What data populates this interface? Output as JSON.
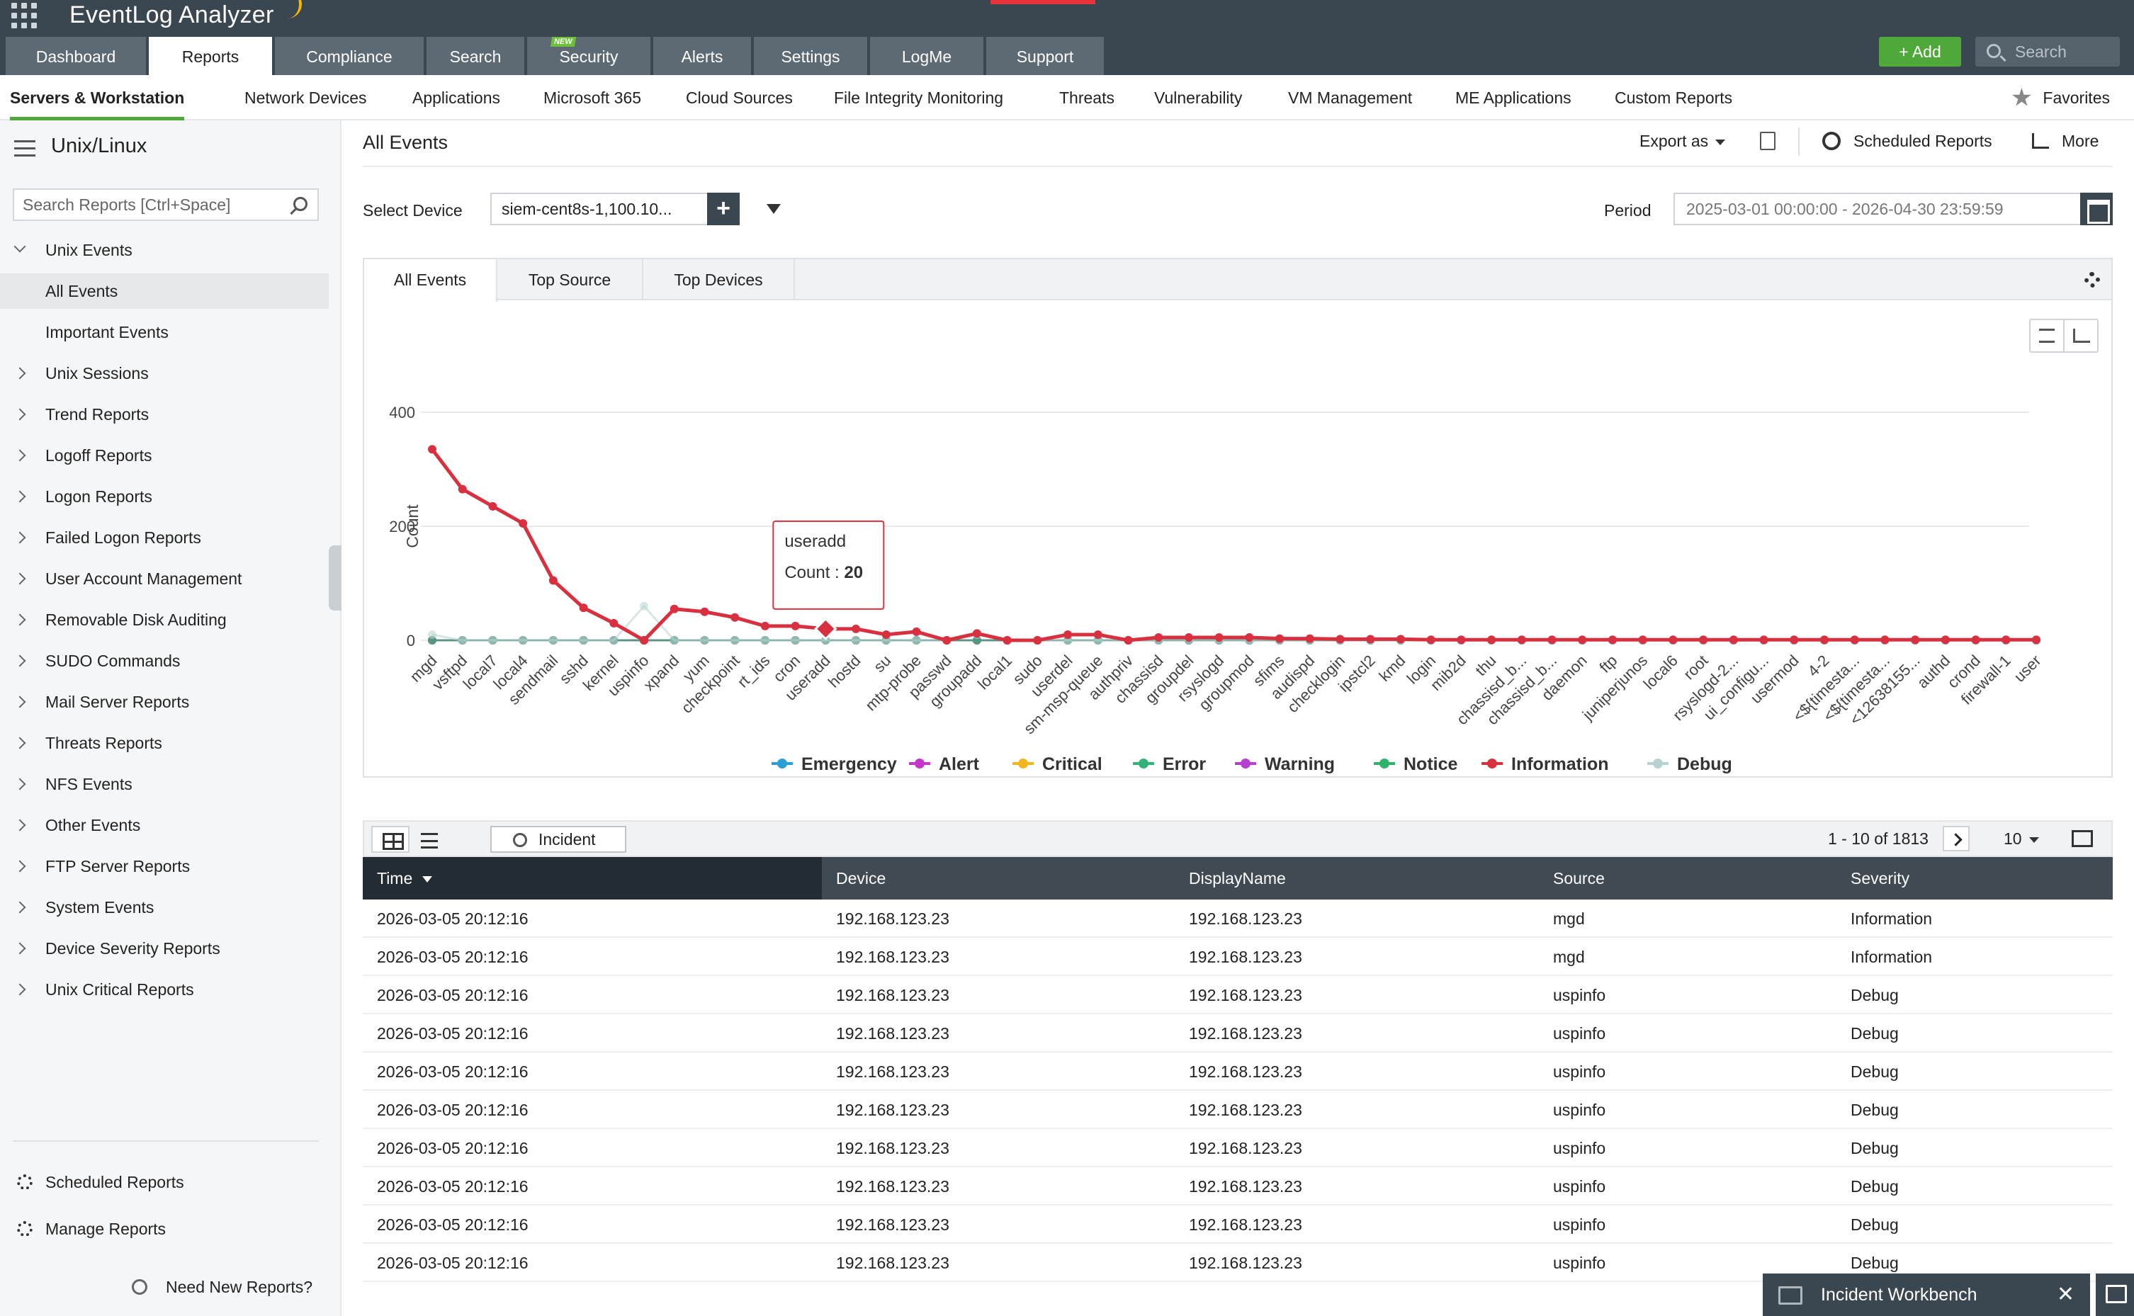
{
  "app": {
    "title": "EventLog Analyzer"
  },
  "main_tabs": [
    {
      "label": "Dashboard",
      "active": false
    },
    {
      "label": "Reports",
      "active": true
    },
    {
      "label": "Compliance",
      "active": false
    },
    {
      "label": "Search",
      "active": false
    },
    {
      "label": "Security",
      "active": false,
      "badge": "NEW"
    },
    {
      "label": "Alerts",
      "active": false
    },
    {
      "label": "Settings",
      "active": false
    },
    {
      "label": "LogMe",
      "active": false
    },
    {
      "label": "Support",
      "active": false
    }
  ],
  "header_actions": {
    "add_label": "Add",
    "search_placeholder": "Search"
  },
  "sub_nav": {
    "items": [
      "Servers & Workstation",
      "Network Devices",
      "Applications",
      "Microsoft 365",
      "Cloud Sources",
      "File Integrity Monitoring",
      "Threats",
      "Vulnerability",
      "VM Management",
      "ME Applications",
      "Custom Reports"
    ],
    "favorites": "Favorites"
  },
  "sidebar": {
    "title": "Unix/Linux",
    "search_placeholder": "Search Reports [Ctrl+Space]",
    "items": [
      {
        "label": "Unix Events",
        "type": "group-open"
      },
      {
        "label": "All Events",
        "type": "child",
        "active": true
      },
      {
        "label": "Important Events",
        "type": "child"
      },
      {
        "label": "Unix Sessions",
        "type": "group"
      },
      {
        "label": "Trend Reports",
        "type": "group"
      },
      {
        "label": "Logoff Reports",
        "type": "group"
      },
      {
        "label": "Logon Reports",
        "type": "group"
      },
      {
        "label": "Failed Logon Reports",
        "type": "group"
      },
      {
        "label": "User Account Management",
        "type": "group"
      },
      {
        "label": "Removable Disk Auditing",
        "type": "group"
      },
      {
        "label": "SUDO Commands",
        "type": "group"
      },
      {
        "label": "Mail Server Reports",
        "type": "group"
      },
      {
        "label": "Threats Reports",
        "type": "group"
      },
      {
        "label": "NFS Events",
        "type": "group"
      },
      {
        "label": "Other Events",
        "type": "group"
      },
      {
        "label": "FTP Server Reports",
        "type": "group"
      },
      {
        "label": "System Events",
        "type": "group"
      },
      {
        "label": "Device Severity Reports",
        "type": "group"
      },
      {
        "label": "Unix Critical Reports",
        "type": "group"
      }
    ],
    "footer": {
      "scheduled": "Scheduled Reports",
      "manage": "Manage Reports",
      "need_new": "Need New Reports?"
    }
  },
  "page": {
    "title": "All Events",
    "export_label": "Export as",
    "scheduled_label": "Scheduled Reports",
    "more_label": "More",
    "select_device_label": "Select Device",
    "device_value": "siem-cent8s-1,100.10...",
    "period_label": "Period",
    "period_value": "2025-03-01 00:00:00 - 2026-04-30 23:59:59"
  },
  "chart_tabs": [
    {
      "label": "All Events",
      "active": true
    },
    {
      "label": "Top Source",
      "active": false
    },
    {
      "label": "Top Devices",
      "active": false
    }
  ],
  "chart_data": {
    "type": "line",
    "ylabel": "Count",
    "ylim": [
      0,
      400
    ],
    "yticks": [
      0,
      200,
      400
    ],
    "categories": [
      "mgd",
      "vsftpd",
      "local7",
      "local4",
      "sendmail",
      "sshd",
      "kernel",
      "uspinfo",
      "xpand",
      "yum",
      "checkpoint",
      "rt_ids",
      "cron",
      "useradd",
      "hostd",
      "su",
      "mtp-probe",
      "passwd",
      "groupadd",
      "local1",
      "sudo",
      "userdel",
      "sm-msp-queue",
      "authpriv",
      "chassisd",
      "groupdel",
      "rsyslogd",
      "groupmod",
      "sfims",
      "audispd",
      "checklogin",
      "ipstcl2",
      "kmd",
      "login",
      "mib2d",
      "thu",
      "chassisd_b...",
      "chassisd_b...",
      "daemon",
      "ftp",
      "juniperjunos",
      "local6",
      "root",
      "rsyslogd-2...",
      "ui_configu...",
      "usermod",
      "4-2",
      "<${timesta...",
      "<${timesta...",
      "<12638155...",
      "authd",
      "crond",
      "firewall-1",
      "user"
    ],
    "series": [
      {
        "name": "Emergency",
        "color": "#2a9fd6",
        "values": [
          0,
          0,
          0,
          0,
          0,
          0,
          0,
          0,
          0,
          0,
          0,
          0,
          0,
          0,
          0,
          0,
          0,
          0,
          0,
          0,
          0,
          0,
          0,
          0,
          0,
          0,
          0,
          0,
          0,
          0,
          0,
          0,
          0,
          0,
          0,
          0,
          0,
          0,
          0,
          0,
          0,
          0,
          0,
          0,
          0,
          0,
          0,
          0,
          0,
          0,
          0,
          0,
          0,
          0
        ]
      },
      {
        "name": "Alert",
        "color": "#c337c9",
        "values": [
          0,
          0,
          0,
          0,
          0,
          0,
          0,
          0,
          0,
          0,
          0,
          0,
          0,
          0,
          0,
          0,
          0,
          0,
          0,
          0,
          0,
          0,
          0,
          0,
          0,
          0,
          0,
          0,
          0,
          0,
          0,
          0,
          0,
          0,
          0,
          0,
          0,
          0,
          0,
          0,
          0,
          0,
          0,
          0,
          0,
          0,
          0,
          0,
          0,
          0,
          0,
          0,
          0,
          0
        ]
      },
      {
        "name": "Critical",
        "color": "#f2b51c",
        "values": [
          0,
          0,
          0,
          0,
          0,
          0,
          0,
          0,
          0,
          0,
          0,
          0,
          0,
          0,
          0,
          0,
          0,
          0,
          0,
          0,
          0,
          0,
          0,
          0,
          0,
          0,
          0,
          0,
          0,
          0,
          0,
          0,
          0,
          0,
          0,
          0,
          0,
          0,
          0,
          0,
          0,
          0,
          0,
          0,
          0,
          0,
          0,
          0,
          0,
          0,
          0,
          0,
          0,
          0
        ]
      },
      {
        "name": "Error",
        "color": "#33b37a",
        "values": [
          0,
          0,
          0,
          0,
          0,
          0,
          0,
          0,
          0,
          0,
          0,
          0,
          0,
          0,
          0,
          0,
          0,
          0,
          0,
          0,
          0,
          0,
          0,
          0,
          0,
          0,
          0,
          0,
          0,
          0,
          0,
          0,
          0,
          0,
          0,
          0,
          0,
          0,
          0,
          0,
          0,
          0,
          0,
          0,
          0,
          0,
          0,
          0,
          0,
          0,
          0,
          0,
          0,
          0
        ]
      },
      {
        "name": "Warning",
        "color": "#b53fd1",
        "values": [
          0,
          0,
          0,
          0,
          0,
          0,
          0,
          0,
          0,
          0,
          0,
          0,
          0,
          0,
          0,
          0,
          0,
          0,
          0,
          0,
          0,
          0,
          0,
          0,
          0,
          0,
          0,
          0,
          0,
          0,
          0,
          0,
          0,
          0,
          0,
          0,
          0,
          0,
          0,
          0,
          0,
          0,
          0,
          0,
          0,
          0,
          0,
          0,
          0,
          0,
          0,
          0,
          0,
          0
        ]
      },
      {
        "name": "Notice",
        "color": "#2fb36b",
        "values": [
          0,
          0,
          0,
          0,
          0,
          0,
          0,
          0,
          0,
          0,
          0,
          0,
          0,
          0,
          0,
          0,
          0,
          0,
          0,
          0,
          0,
          0,
          0,
          0,
          0,
          0,
          0,
          0,
          0,
          0,
          0,
          0,
          0,
          0,
          0,
          0,
          0,
          0,
          0,
          0,
          0,
          0,
          0,
          0,
          0,
          0,
          0,
          0,
          0,
          0,
          0,
          0,
          0,
          0
        ]
      },
      {
        "name": "Information",
        "color": "#d9303f",
        "values": [
          335,
          265,
          235,
          205,
          105,
          57,
          30,
          0,
          55,
          50,
          40,
          25,
          25,
          20,
          20,
          10,
          15,
          0,
          12,
          0,
          0,
          10,
          10,
          0,
          5,
          5,
          5,
          5,
          3,
          3,
          2,
          2,
          2,
          1,
          1,
          1,
          1,
          1,
          1,
          1,
          1,
          1,
          1,
          1,
          1,
          1,
          1,
          1,
          1,
          1,
          1,
          1,
          1,
          1
        ]
      },
      {
        "name": "Debug",
        "color": "#b7d3d0",
        "values": [
          10,
          0,
          0,
          0,
          0,
          0,
          0,
          60,
          0,
          0,
          0,
          0,
          0,
          0,
          0,
          0,
          0,
          0,
          10,
          0,
          0,
          0,
          0,
          0,
          0,
          0,
          0,
          0,
          0,
          0,
          0,
          0,
          0,
          0,
          0,
          0,
          0,
          0,
          0,
          0,
          0,
          0,
          0,
          0,
          0,
          0,
          0,
          0,
          0,
          0,
          0,
          0,
          0,
          0
        ]
      }
    ],
    "tooltip": {
      "category": "useradd",
      "label": "Count",
      "value": "20"
    },
    "legend_position": "bottom-center",
    "grid": true
  },
  "table": {
    "incident_label": "Incident",
    "pagination": "1 - 10 of 1813",
    "per_page": "10",
    "columns": [
      "Time",
      "Device",
      "DisplayName",
      "Source",
      "Severity"
    ],
    "rows": [
      [
        "2026-03-05 20:12:16",
        "192.168.123.23",
        "192.168.123.23",
        "mgd",
        "Information"
      ],
      [
        "2026-03-05 20:12:16",
        "192.168.123.23",
        "192.168.123.23",
        "mgd",
        "Information"
      ],
      [
        "2026-03-05 20:12:16",
        "192.168.123.23",
        "192.168.123.23",
        "uspinfo",
        "Debug"
      ],
      [
        "2026-03-05 20:12:16",
        "192.168.123.23",
        "192.168.123.23",
        "uspinfo",
        "Debug"
      ],
      [
        "2026-03-05 20:12:16",
        "192.168.123.23",
        "192.168.123.23",
        "uspinfo",
        "Debug"
      ],
      [
        "2026-03-05 20:12:16",
        "192.168.123.23",
        "192.168.123.23",
        "uspinfo",
        "Debug"
      ],
      [
        "2026-03-05 20:12:16",
        "192.168.123.23",
        "192.168.123.23",
        "uspinfo",
        "Debug"
      ],
      [
        "2026-03-05 20:12:16",
        "192.168.123.23",
        "192.168.123.23",
        "uspinfo",
        "Debug"
      ],
      [
        "2026-03-05 20:12:16",
        "192.168.123.23",
        "192.168.123.23",
        "uspinfo",
        "Debug"
      ],
      [
        "2026-03-05 20:12:16",
        "192.168.123.23",
        "192.168.123.23",
        "uspinfo",
        "Debug"
      ]
    ]
  },
  "workbench": {
    "label": "Incident Workbench"
  }
}
